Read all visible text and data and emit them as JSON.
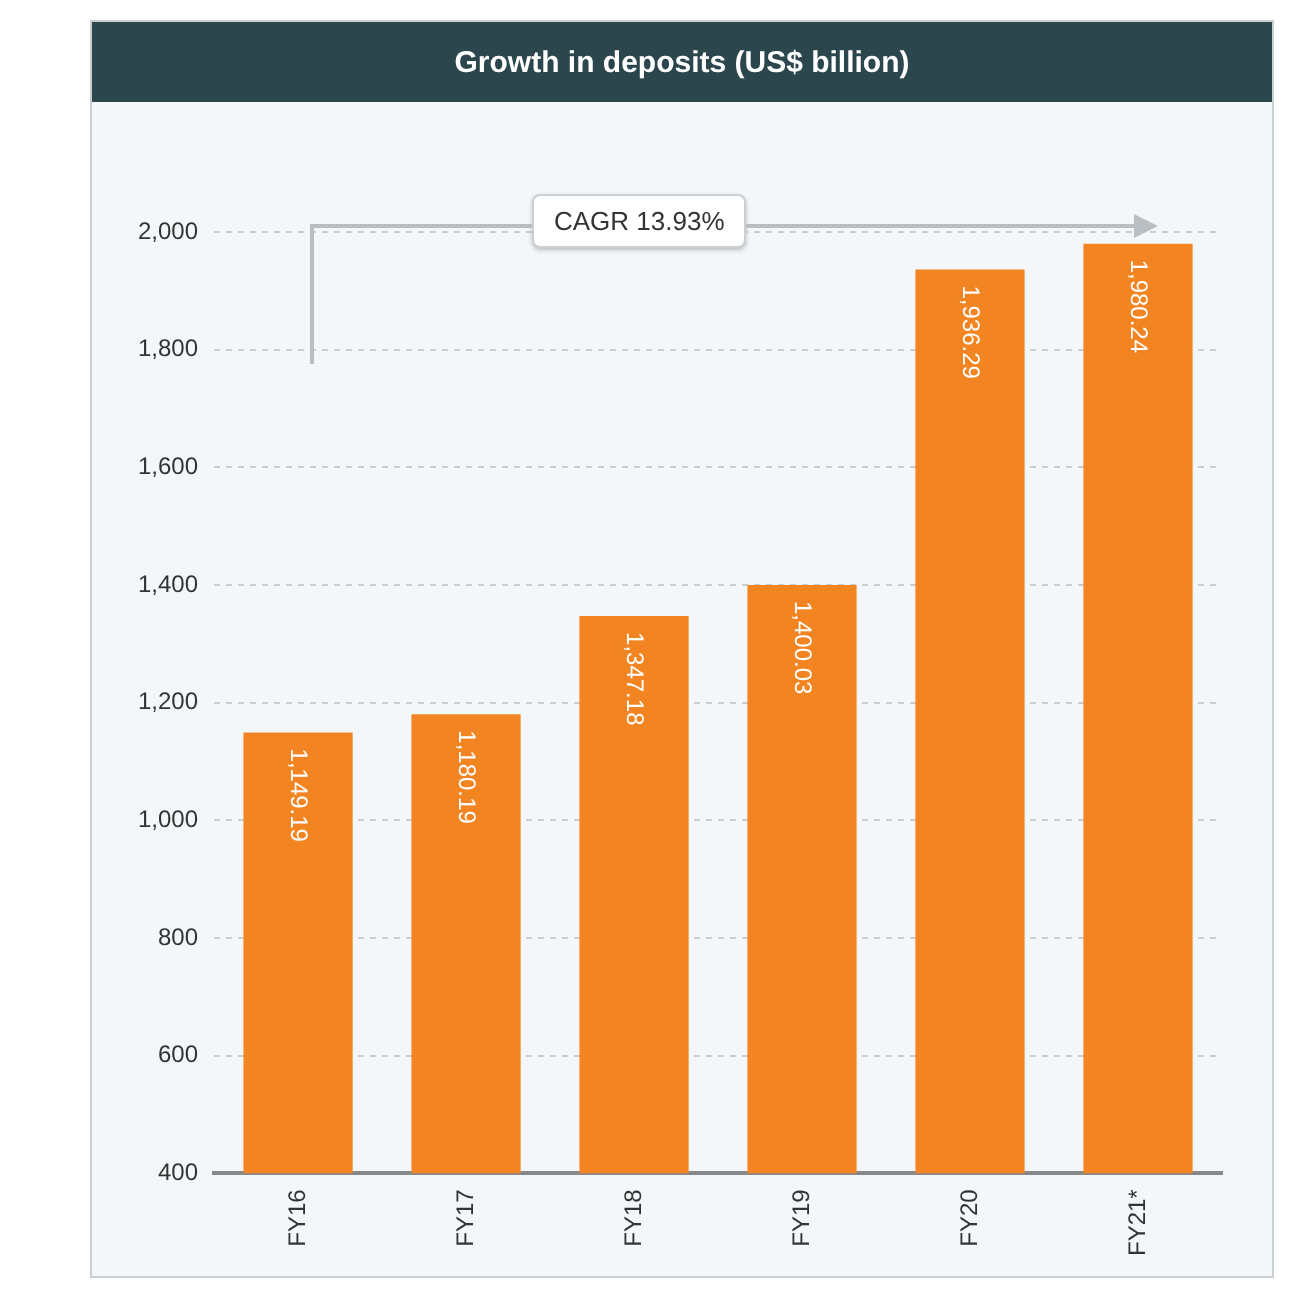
{
  "chart_data": {
    "type": "bar",
    "title": "Growth in deposits (US$ billion)",
    "categories": [
      "FY16",
      "FY17",
      "FY18",
      "FY19",
      "FY20",
      "FY21*"
    ],
    "values": [
      1149.19,
      1180.19,
      1347.18,
      1400.03,
      1936.29,
      1980.24
    ],
    "value_labels": [
      "1,149.19",
      "1,180.19",
      "1,347.18",
      "1,400.03",
      "1,936.29",
      "1,980.24"
    ],
    "color": "#f28421",
    "ylim": [
      400,
      2000
    ],
    "yticks": [
      400,
      600,
      800,
      {
        "value": 1000,
        "label": "1,000"
      },
      {
        "value": 1200,
        "label": "1,200"
      },
      {
        "value": 1400,
        "label": "1,400"
      },
      {
        "value": 1600,
        "label": "1,600"
      },
      {
        "value": 1800,
        "label": "1,800"
      },
      {
        "value": 2000,
        "label": "2,000"
      }
    ],
    "grid": "y",
    "legend": false,
    "annotations": [
      "CAGR 13.93%"
    ]
  }
}
